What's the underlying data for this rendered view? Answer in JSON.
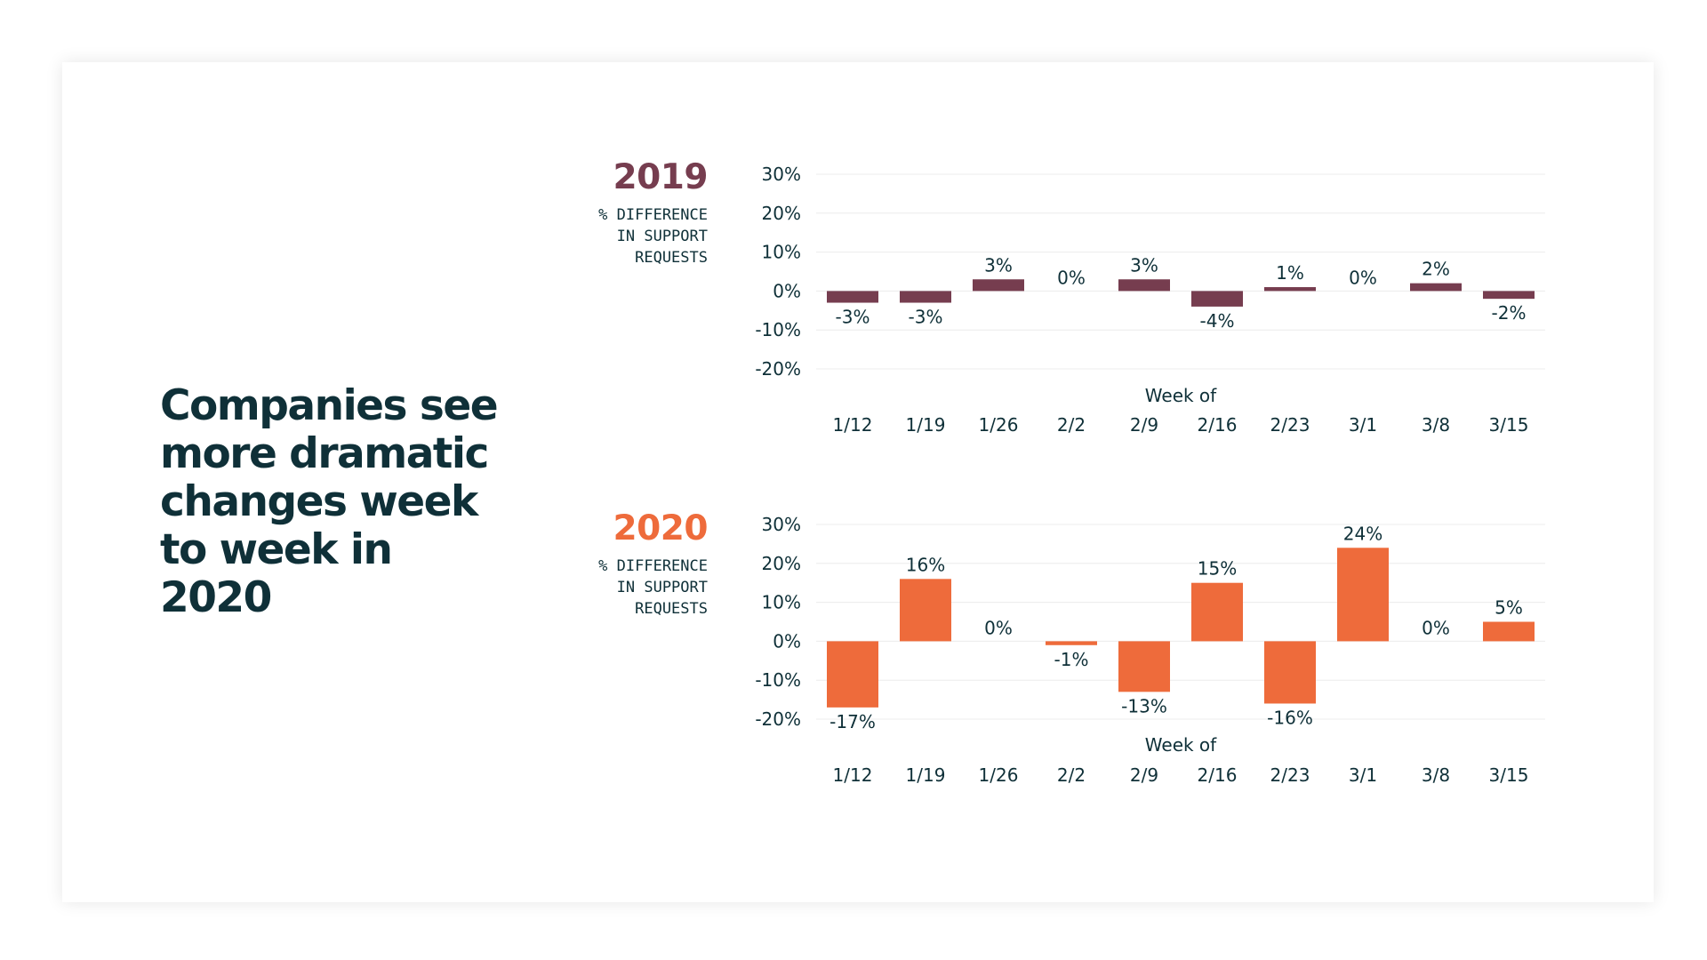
{
  "headline": "Companies see more dramatic changes week to week in 2020",
  "colors": {
    "text": "#0f3038",
    "series_2019": "#763d4f",
    "series_2020": "#ee6b3b",
    "grid": "#ececec"
  },
  "chart_data": [
    {
      "type": "bar",
      "title": "2019",
      "ylabel": "% DIFFERENCE\nIN SUPPORT\nREQUESTS",
      "xlabel": "Week of",
      "categories": [
        "1/12",
        "1/19",
        "1/26",
        "2/2",
        "2/9",
        "2/16",
        "2/23",
        "3/1",
        "3/8",
        "3/15"
      ],
      "values": [
        -3,
        -3,
        3,
        0,
        3,
        -4,
        1,
        0,
        2,
        -2
      ],
      "data_labels": [
        "-3%",
        "-3%",
        "3%",
        "0%",
        "3%",
        "-4%",
        "1%",
        "0%",
        "2%",
        "-2%"
      ],
      "yticks": [
        "30%",
        "20%",
        "10%",
        "0%",
        "-10%",
        "-20%"
      ],
      "ylim": [
        -20,
        30
      ],
      "grid": true,
      "color": "#763d4f"
    },
    {
      "type": "bar",
      "title": "2020",
      "ylabel": "% DIFFERENCE\nIN SUPPORT\nREQUESTS",
      "xlabel": "Week of",
      "categories": [
        "1/12",
        "1/19",
        "1/26",
        "2/2",
        "2/9",
        "2/16",
        "2/23",
        "3/1",
        "3/8",
        "3/15"
      ],
      "values": [
        -17,
        16,
        0,
        -1,
        -13,
        15,
        -16,
        24,
        0,
        5
      ],
      "data_labels": [
        "-17%",
        "16%",
        "0%",
        "-1%",
        "-13%",
        "15%",
        "-16%",
        "24%",
        "0%",
        "5%"
      ],
      "yticks": [
        "30%",
        "20%",
        "10%",
        "0%",
        "-10%",
        "-20%"
      ],
      "ylim": [
        -20,
        30
      ],
      "grid": true,
      "color": "#ee6b3b"
    }
  ]
}
